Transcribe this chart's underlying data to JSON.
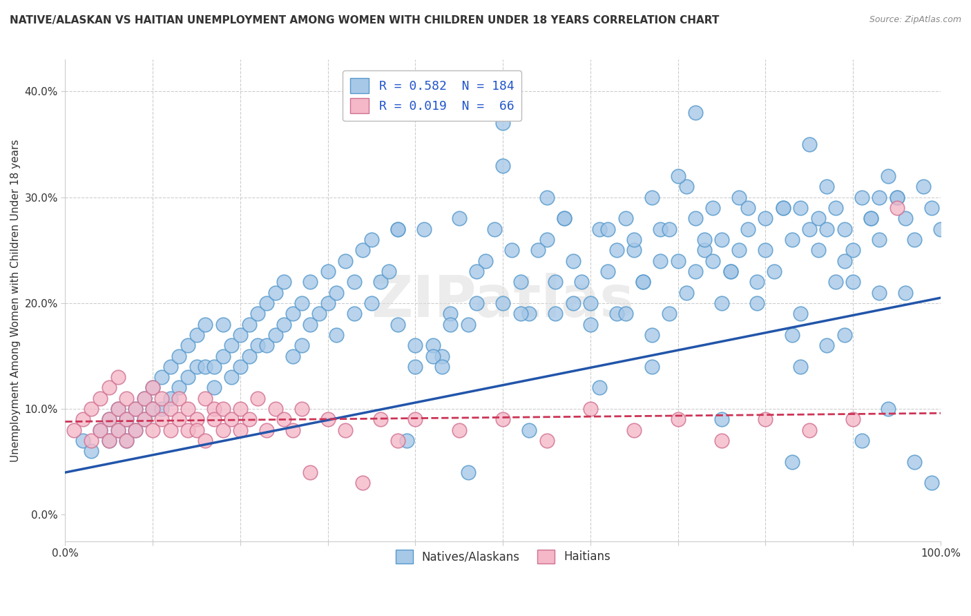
{
  "title": "NATIVE/ALASKAN VS HAITIAN UNEMPLOYMENT AMONG WOMEN WITH CHILDREN UNDER 18 YEARS CORRELATION CHART",
  "source": "Source: ZipAtlas.com",
  "ylabel": "Unemployment Among Women with Children Under 18 years",
  "watermark": "ZIPatlas",
  "blue_R": 0.582,
  "blue_N": 184,
  "pink_R": 0.019,
  "pink_N": 66,
  "blue_color": "#a8c8e8",
  "blue_edge_color": "#5599cc",
  "pink_color": "#f4b8c8",
  "pink_edge_color": "#d07090",
  "blue_line_color": "#2255aa",
  "pink_line_color": "#cc3355",
  "legend_label_blue": "Natives/Alaskans",
  "legend_label_pink": "Haitians",
  "background_color": "#ffffff",
  "xlim": [
    0,
    1.0
  ],
  "ylim": [
    -0.025,
    0.43
  ],
  "xtick_labels": [
    "0.0%",
    "",
    "",
    "",
    "",
    "",
    "",
    "",
    "",
    "",
    "100.0%"
  ],
  "ytick_labels": [
    "0.0%",
    "10.0%",
    "20.0%",
    "30.0%",
    "40.0%"
  ],
  "yticks": [
    0.0,
    0.1,
    0.2,
    0.3,
    0.4
  ],
  "xticks": [
    0.0,
    0.1,
    0.2,
    0.3,
    0.4,
    0.5,
    0.6,
    0.7,
    0.8,
    0.9,
    1.0
  ],
  "blue_scatter_x": [
    0.02,
    0.03,
    0.04,
    0.05,
    0.05,
    0.06,
    0.06,
    0.07,
    0.07,
    0.08,
    0.08,
    0.09,
    0.09,
    0.1,
    0.1,
    0.11,
    0.11,
    0.12,
    0.12,
    0.13,
    0.13,
    0.14,
    0.14,
    0.15,
    0.15,
    0.16,
    0.16,
    0.17,
    0.17,
    0.18,
    0.18,
    0.19,
    0.19,
    0.2,
    0.2,
    0.21,
    0.21,
    0.22,
    0.22,
    0.23,
    0.23,
    0.24,
    0.24,
    0.25,
    0.25,
    0.26,
    0.26,
    0.27,
    0.27,
    0.28,
    0.28,
    0.29,
    0.3,
    0.3,
    0.31,
    0.31,
    0.32,
    0.33,
    0.33,
    0.34,
    0.35,
    0.35,
    0.36,
    0.37,
    0.38,
    0.38,
    0.4,
    0.4,
    0.41,
    0.42,
    0.43,
    0.44,
    0.45,
    0.46,
    0.47,
    0.48,
    0.5,
    0.51,
    0.52,
    0.53,
    0.55,
    0.56,
    0.57,
    0.58,
    0.6,
    0.61,
    0.62,
    0.63,
    0.64,
    0.65,
    0.66,
    0.67,
    0.68,
    0.7,
    0.71,
    0.72,
    0.73,
    0.74,
    0.75,
    0.76,
    0.77,
    0.78,
    0.8,
    0.81,
    0.82,
    0.83,
    0.84,
    0.85,
    0.86,
    0.87,
    0.88,
    0.89,
    0.9,
    0.91,
    0.92,
    0.93,
    0.94,
    0.95,
    0.96,
    0.97,
    0.98,
    0.99,
    1.0,
    0.5,
    0.55,
    0.6,
    0.65,
    0.7,
    0.75,
    0.8,
    0.85,
    0.9,
    0.95,
    0.62,
    0.68,
    0.72,
    0.78,
    0.84,
    0.88,
    0.92,
    0.96,
    0.38,
    0.42,
    0.47,
    0.52,
    0.57,
    0.63,
    0.66,
    0.69,
    0.73,
    0.76,
    0.79,
    0.83,
    0.86,
    0.89,
    0.93,
    0.44,
    0.49,
    0.54,
    0.59,
    0.64,
    0.69,
    0.74,
    0.79,
    0.84,
    0.89,
    0.94,
    0.39,
    0.46,
    0.53,
    0.61,
    0.67,
    0.71,
    0.77,
    0.82,
    0.87,
    0.91,
    0.97,
    0.99,
    0.43,
    0.56,
    0.72,
    0.87,
    0.93,
    0.5,
    0.58,
    0.67,
    0.75,
    0.83,
    0.91,
    0.98
  ],
  "blue_scatter_y": [
    0.07,
    0.06,
    0.08,
    0.09,
    0.07,
    0.08,
    0.1,
    0.09,
    0.07,
    0.1,
    0.08,
    0.11,
    0.09,
    0.12,
    0.1,
    0.13,
    0.1,
    0.14,
    0.11,
    0.15,
    0.12,
    0.16,
    0.13,
    0.17,
    0.14,
    0.18,
    0.14,
    0.14,
    0.12,
    0.18,
    0.15,
    0.16,
    0.13,
    0.17,
    0.14,
    0.18,
    0.15,
    0.19,
    0.16,
    0.2,
    0.16,
    0.21,
    0.17,
    0.22,
    0.18,
    0.19,
    0.15,
    0.2,
    0.16,
    0.22,
    0.18,
    0.19,
    0.23,
    0.2,
    0.21,
    0.17,
    0.24,
    0.19,
    0.22,
    0.25,
    0.2,
    0.26,
    0.22,
    0.23,
    0.18,
    0.27,
    0.16,
    0.14,
    0.27,
    0.16,
    0.15,
    0.19,
    0.28,
    0.18,
    0.2,
    0.24,
    0.2,
    0.25,
    0.22,
    0.19,
    0.26,
    0.22,
    0.28,
    0.24,
    0.2,
    0.27,
    0.23,
    0.19,
    0.28,
    0.25,
    0.22,
    0.3,
    0.27,
    0.24,
    0.31,
    0.28,
    0.25,
    0.29,
    0.26,
    0.23,
    0.3,
    0.27,
    0.25,
    0.23,
    0.29,
    0.26,
    0.29,
    0.27,
    0.25,
    0.31,
    0.29,
    0.27,
    0.25,
    0.3,
    0.28,
    0.26,
    0.32,
    0.3,
    0.28,
    0.26,
    0.31,
    0.29,
    0.27,
    0.37,
    0.3,
    0.18,
    0.26,
    0.32,
    0.2,
    0.28,
    0.35,
    0.22,
    0.3,
    0.27,
    0.24,
    0.38,
    0.29,
    0.14,
    0.22,
    0.28,
    0.21,
    0.27,
    0.15,
    0.23,
    0.19,
    0.28,
    0.25,
    0.22,
    0.19,
    0.26,
    0.23,
    0.2,
    0.17,
    0.28,
    0.24,
    0.21,
    0.18,
    0.27,
    0.25,
    0.22,
    0.19,
    0.27,
    0.24,
    0.22,
    0.19,
    0.17,
    0.1,
    0.07,
    0.04,
    0.08,
    0.12,
    0.17,
    0.21,
    0.25,
    0.29,
    0.16,
    0.07,
    0.05,
    0.03,
    0.14,
    0.19,
    0.23,
    0.27,
    0.3,
    0.33,
    0.2,
    0.14,
    0.09,
    0.05
  ],
  "pink_scatter_x": [
    0.01,
    0.02,
    0.03,
    0.03,
    0.04,
    0.04,
    0.05,
    0.05,
    0.05,
    0.06,
    0.06,
    0.06,
    0.07,
    0.07,
    0.07,
    0.08,
    0.08,
    0.09,
    0.09,
    0.1,
    0.1,
    0.1,
    0.11,
    0.11,
    0.12,
    0.12,
    0.13,
    0.13,
    0.14,
    0.14,
    0.15,
    0.15,
    0.16,
    0.16,
    0.17,
    0.17,
    0.18,
    0.18,
    0.19,
    0.2,
    0.2,
    0.21,
    0.22,
    0.23,
    0.24,
    0.25,
    0.26,
    0.27,
    0.28,
    0.3,
    0.32,
    0.34,
    0.36,
    0.38,
    0.4,
    0.45,
    0.5,
    0.55,
    0.6,
    0.65,
    0.7,
    0.75,
    0.8,
    0.85,
    0.9,
    0.95
  ],
  "pink_scatter_y": [
    0.08,
    0.09,
    0.07,
    0.1,
    0.08,
    0.11,
    0.09,
    0.07,
    0.12,
    0.08,
    0.1,
    0.13,
    0.09,
    0.07,
    0.11,
    0.1,
    0.08,
    0.11,
    0.09,
    0.1,
    0.08,
    0.12,
    0.09,
    0.11,
    0.08,
    0.1,
    0.09,
    0.11,
    0.08,
    0.1,
    0.09,
    0.08,
    0.11,
    0.07,
    0.1,
    0.09,
    0.08,
    0.1,
    0.09,
    0.08,
    0.1,
    0.09,
    0.11,
    0.08,
    0.1,
    0.09,
    0.08,
    0.1,
    0.04,
    0.09,
    0.08,
    0.03,
    0.09,
    0.07,
    0.09,
    0.08,
    0.09,
    0.07,
    0.1,
    0.08,
    0.09,
    0.07,
    0.09,
    0.08,
    0.09,
    0.29
  ],
  "blue_trendline_x": [
    0.0,
    1.0
  ],
  "blue_trendline_y": [
    0.04,
    0.205
  ],
  "pink_trendline_x": [
    0.0,
    1.0
  ],
  "pink_trendline_y": [
    0.088,
    0.096
  ]
}
